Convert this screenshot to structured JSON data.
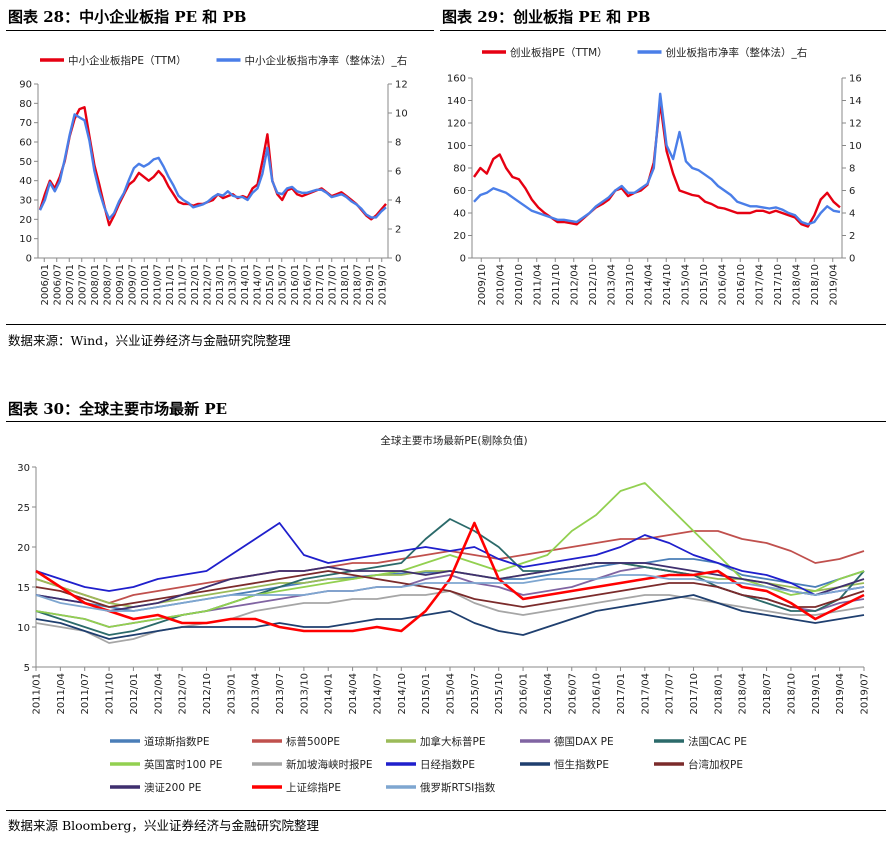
{
  "figures": {
    "fig28": {
      "title": "图表 28：中小企业板指 PE 和 PB",
      "chart_data": {
        "type": "line",
        "x_ticks": [
          "2006/01",
          "2006/07",
          "2007/01",
          "2007/07",
          "2008/01",
          "2008/07",
          "2009/01",
          "2009/07",
          "2010/01",
          "2010/07",
          "2011/01",
          "2011/07",
          "2012/01",
          "2012/07",
          "2013/01",
          "2013/07",
          "2014/01",
          "2014/07",
          "2015/01",
          "2015/07",
          "2016/01",
          "2016/07",
          "2017/01",
          "2017/07",
          "2018/01",
          "2018/07",
          "2019/01",
          "2019/07"
        ],
        "ylim_left": [
          0,
          90
        ],
        "yticks_left": [
          0,
          10,
          20,
          30,
          40,
          50,
          60,
          70,
          80,
          90
        ],
        "ylim_right": [
          0,
          12
        ],
        "yticks_right": [
          0,
          2,
          4,
          6,
          8,
          10,
          12
        ],
        "series": [
          {
            "name": "中小企业板指PE（TTM）",
            "axis": "left",
            "color": "#e60012",
            "values": [
              25,
              33,
              40,
              36,
              42,
              50,
              63,
              72,
              77,
              78,
              63,
              48,
              38,
              27,
              17,
              22,
              28,
              33,
              38,
              40,
              44,
              42,
              40,
              42,
              45,
              42,
              37,
              33,
              29,
              28,
              28,
              27,
              28,
              28,
              29,
              30,
              33,
              31,
              32,
              33,
              31,
              32,
              31,
              36,
              38,
              50,
              64,
              40,
              33,
              30,
              35,
              36,
              33,
              32,
              33,
              34,
              35,
              36,
              34,
              32,
              33,
              34,
              32,
              30,
              28,
              25,
              22,
              20,
              22,
              25,
              28
            ]
          },
          {
            "name": "中小企业板指市净率（整体法）_右",
            "axis": "right",
            "color": "#4a7ee8",
            "values": [
              3.3,
              4.0,
              5.2,
              4.6,
              5.3,
              6.8,
              8.5,
              9.9,
              9.7,
              9.5,
              8.1,
              6.0,
              4.6,
              3.5,
              2.7,
              3.1,
              3.9,
              4.5,
              5.4,
              6.2,
              6.5,
              6.3,
              6.5,
              6.8,
              6.9,
              6.3,
              5.6,
              5.0,
              4.3,
              4.0,
              3.8,
              3.5,
              3.6,
              3.7,
              3.9,
              4.2,
              4.4,
              4.3,
              4.6,
              4.3,
              4.2,
              4.2,
              4.0,
              4.5,
              4.8,
              5.8,
              7.6,
              5.3,
              4.5,
              4.4,
              4.8,
              4.9,
              4.6,
              4.5,
              4.5,
              4.6,
              4.7,
              4.7,
              4.5,
              4.2,
              4.3,
              4.4,
              4.2,
              3.9,
              3.7,
              3.4,
              3.0,
              2.8,
              2.8,
              3.2,
              3.5
            ]
          }
        ]
      }
    },
    "fig29": {
      "title": "图表 29：创业板指 PE 和 PB",
      "chart_data": {
        "type": "line",
        "x_ticks": [
          "2009/10",
          "2010/04",
          "2010/10",
          "2011/04",
          "2011/10",
          "2012/04",
          "2012/10",
          "2013/04",
          "2013/10",
          "2014/04",
          "2014/10",
          "2015/04",
          "2015/10",
          "2016/04",
          "2016/10",
          "2017/04",
          "2017/10",
          "2018/04",
          "2018/10",
          "2019/04"
        ],
        "ylim_left": [
          0,
          160
        ],
        "yticks_left": [
          0,
          20,
          40,
          60,
          80,
          100,
          120,
          140,
          160
        ],
        "ylim_right": [
          0,
          16
        ],
        "yticks_right": [
          0,
          2,
          4,
          6,
          8,
          10,
          12,
          14,
          16
        ],
        "series": [
          {
            "name": "创业板指PE（TTM）",
            "axis": "left",
            "color": "#e60012",
            "values": [
              72,
              80,
              75,
              88,
              92,
              80,
              72,
              70,
              62,
              52,
              45,
              40,
              36,
              32,
              32,
              31,
              30,
              35,
              40,
              45,
              48,
              52,
              60,
              62,
              55,
              58,
              60,
              65,
              85,
              138,
              95,
              75,
              60,
              58,
              56,
              55,
              50,
              48,
              45,
              44,
              42,
              40,
              40,
              40,
              42,
              42,
              40,
              42,
              40,
              38,
              36,
              30,
              28,
              38,
              52,
              58,
              50,
              45
            ]
          },
          {
            "name": "创业板指市净率（整体法）_右",
            "axis": "right",
            "color": "#4a7ee8",
            "values": [
              5.0,
              5.6,
              5.8,
              6.2,
              6.0,
              5.8,
              5.4,
              5.0,
              4.6,
              4.2,
              4.0,
              3.8,
              3.6,
              3.4,
              3.4,
              3.3,
              3.2,
              3.6,
              4.0,
              4.6,
              5.0,
              5.4,
              6.0,
              6.4,
              5.8,
              5.8,
              6.2,
              6.6,
              8.0,
              14.6,
              10.0,
              8.8,
              11.2,
              8.6,
              8.0,
              7.8,
              7.4,
              7.0,
              6.4,
              6.0,
              5.6,
              5.0,
              4.8,
              4.6,
              4.6,
              4.5,
              4.4,
              4.5,
              4.3,
              4.0,
              3.8,
              3.2,
              3.0,
              3.2,
              4.0,
              4.6,
              4.2,
              4.1
            ]
          }
        ]
      }
    },
    "source1": "数据来源：Wind，兴业证券经济与金融研究院整理",
    "fig30": {
      "title": "图表 30：全球主要市场最新 PE",
      "chart_data": {
        "type": "line",
        "title": "全球主要市场最新PE(剔除负值)",
        "x_ticks": [
          "2011/01",
          "2011/04",
          "2011/07",
          "2011/10",
          "2012/01",
          "2012/04",
          "2012/07",
          "2012/10",
          "2013/01",
          "2013/04",
          "2013/07",
          "2013/10",
          "2014/01",
          "2014/04",
          "2014/07",
          "2014/10",
          "2015/01",
          "2015/04",
          "2015/07",
          "2015/10",
          "2016/01",
          "2016/04",
          "2016/07",
          "2016/10",
          "2017/01",
          "2017/04",
          "2017/07",
          "2017/10",
          "2018/01",
          "2018/04",
          "2018/07",
          "2018/10",
          "2019/01",
          "2019/04",
          "2019/07"
        ],
        "ylim": [
          5,
          30
        ],
        "yticks": [
          5,
          10,
          15,
          20,
          25,
          30
        ],
        "series": [
          {
            "name": "道琼斯指数PE",
            "color": "#4a7eb8",
            "values": [
              14,
              13.5,
              13,
              12.5,
              12,
              12.5,
              13,
              13.5,
              14,
              14.5,
              15,
              15.5,
              16,
              16.2,
              16.5,
              16.7,
              16.8,
              17,
              16.5,
              16,
              16,
              16.5,
              17,
              17.5,
              18,
              18,
              18.5,
              18.5,
              18,
              16.5,
              16,
              15.5,
              15,
              16,
              17
            ]
          },
          {
            "name": "标普500PE",
            "color": "#c0504d",
            "values": [
              16,
              15,
              14,
              13,
              14,
              14.5,
              15,
              15.5,
              16,
              16.5,
              17,
              17,
              17.5,
              18,
              18,
              18.5,
              19,
              19.5,
              19,
              18.5,
              19,
              19.5,
              20,
              20.5,
              21,
              21,
              21.5,
              22,
              22,
              21,
              20.5,
              19.5,
              18,
              18.5,
              19.5
            ]
          },
          {
            "name": "加拿大标普PE",
            "color": "#9bbb59",
            "values": [
              16,
              15,
              14,
              13,
              12.5,
              13,
              13.5,
              14,
              14.5,
              15,
              15.5,
              15.5,
              16,
              16,
              16.5,
              16.5,
              17,
              17,
              16.5,
              16,
              16.5,
              17,
              17.5,
              18,
              18,
              17.5,
              17,
              16.5,
              16,
              16,
              15.5,
              15,
              14.5,
              15,
              15.5
            ]
          },
          {
            "name": "德国DAX PE",
            "color": "#8064a2",
            "values": [
              12,
              11.5,
              11,
              10,
              10.5,
              11,
              11.5,
              12,
              12.5,
              13,
              13.5,
              14,
              14.5,
              14.5,
              15,
              15,
              16,
              16.5,
              15.5,
              15,
              14,
              14.5,
              15,
              16,
              17,
              17.5,
              17,
              16.5,
              15,
              14,
              13.5,
              12.5,
              12,
              13,
              13.5
            ]
          },
          {
            "name": "法国CAC PE",
            "color": "#2b6a6a",
            "values": [
              12,
              11,
              10,
              9,
              9.5,
              10.5,
              11.5,
              12,
              13,
              14,
              15,
              16,
              16.5,
              17,
              17.5,
              18,
              21,
              23.5,
              22,
              20,
              17,
              17,
              17.5,
              18,
              18,
              17.5,
              17,
              16.5,
              15,
              14,
              13,
              12,
              12,
              13.5,
              17
            ]
          },
          {
            "name": "英国富时100 PE",
            "color": "#92d050",
            "values": [
              12,
              11.5,
              11,
              10,
              10.5,
              11,
              11.5,
              12,
              13,
              14,
              14.5,
              15,
              15.5,
              16,
              16.5,
              17,
              18,
              19,
              18,
              17,
              18,
              19,
              22,
              24,
              27,
              28,
              25,
              22,
              19,
              16,
              15,
              14,
              14.5,
              16,
              17
            ]
          },
          {
            "name": "新加坡海峡时报PE",
            "color": "#a6a6a6",
            "values": [
              10.5,
              10,
              9.5,
              8,
              8.5,
              9.5,
              10,
              10.5,
              11,
              12,
              12.5,
              13,
              13,
              13.5,
              13.5,
              14,
              14,
              14.5,
              13,
              12,
              11.5,
              12,
              12.5,
              13,
              13.5,
              14,
              14,
              13.5,
              13,
              12.5,
              12,
              11.5,
              11.5,
              12,
              12.5
            ]
          },
          {
            "name": "日经指数PE",
            "color": "#1f1fcc",
            "values": [
              17,
              16,
              15,
              14.5,
              15,
              16,
              16.5,
              17,
              19,
              21,
              23,
              19,
              18,
              18.5,
              19,
              19.5,
              20,
              19.5,
              20,
              18.5,
              17.5,
              18,
              18.5,
              19,
              20,
              21.5,
              20.5,
              19,
              18,
              17,
              16.5,
              15.5,
              14,
              14.5,
              15
            ]
          },
          {
            "name": "恒生指数PE",
            "color": "#1f3f6f",
            "values": [
              11,
              10.5,
              9.5,
              8.5,
              9,
              9.5,
              10,
              10,
              10,
              10,
              10.5,
              10,
              10,
              10.5,
              11,
              11,
              11.5,
              12,
              10.5,
              9.5,
              9,
              10,
              11,
              12,
              12.5,
              13,
              13.5,
              14,
              13,
              12,
              11.5,
              11,
              10.5,
              11,
              11.5
            ]
          },
          {
            "name": "台湾加权PE",
            "color": "#7b2b2b",
            "values": [
              15,
              14.5,
              13.5,
              12.5,
              13,
              13.5,
              14,
              14.5,
              15,
              15.5,
              16,
              16.5,
              17,
              16.5,
              16,
              15.5,
              15,
              14.5,
              13.5,
              13,
              12.5,
              13,
              13.5,
              14,
              14.5,
              15,
              15.5,
              15.5,
              15,
              14,
              13.5,
              12.5,
              12.5,
              13.5,
              14.5
            ]
          },
          {
            "name": "澳证200 PE",
            "color": "#3f2f6f",
            "values": [
              14,
              13.5,
              13,
              12,
              12.5,
              13,
              14,
              15,
              16,
              16.5,
              17,
              17,
              17.5,
              17,
              17,
              17,
              16.5,
              17,
              16.5,
              16,
              16.5,
              17,
              17.5,
              18,
              18,
              18,
              17.5,
              17,
              16.5,
              16,
              15.5,
              14.5,
              14,
              15,
              16
            ]
          },
          {
            "name": "上证综指PE",
            "color": "#ff0000",
            "values": [
              17,
              15,
              13,
              12,
              11,
              11.5,
              10.5,
              10.5,
              11,
              11,
              10,
              9.5,
              9.5,
              9.5,
              10,
              9.5,
              12,
              16,
              23,
              16,
              13.5,
              14,
              14.5,
              15,
              15.5,
              16,
              16.5,
              16.5,
              17,
              15,
              14.5,
              13,
              11,
              12.5,
              14
            ]
          },
          {
            "name": "俄罗斯RTSI指数",
            "color": "#7ea6d0",
            "values": [
              14,
              13,
              12.5,
              12,
              12,
              12.5,
              13,
              13.5,
              14,
              14,
              14,
              14,
              14.5,
              14.5,
              15,
              15,
              15.5,
              15.5,
              15.5,
              15.5,
              15.5,
              16,
              16,
              16,
              16.5,
              16.5,
              16,
              16,
              15.5,
              15.5,
              15,
              14.5,
              14,
              14.5,
              15
            ]
          }
        ]
      }
    },
    "source2": "数据来源 Bloomberg，兴业证券经济与金融研究院整理"
  }
}
